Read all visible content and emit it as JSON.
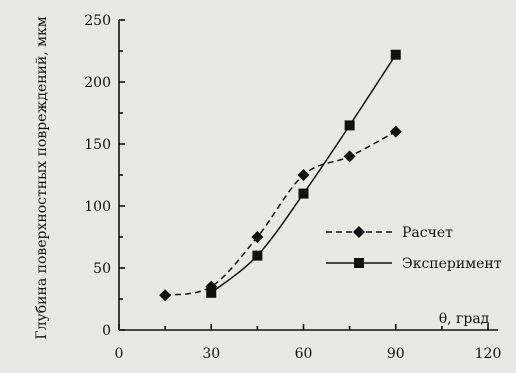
{
  "chart_data": {
    "type": "line",
    "ylabel": "Глубина поверхностных повреждений, мкм",
    "xlabel": "θ, град",
    "xlim": [
      0,
      120
    ],
    "ylim": [
      0,
      250
    ],
    "xticks": [
      0,
      30,
      60,
      90,
      120
    ],
    "yticks": [
      0,
      50,
      100,
      150,
      200,
      250
    ],
    "legend_position": "right",
    "series": [
      {
        "name": "Расчет",
        "line": "dashed",
        "marker": "diamond",
        "points": [
          [
            15,
            28
          ],
          [
            30,
            35
          ],
          [
            45,
            75
          ],
          [
            60,
            125
          ],
          [
            75,
            140
          ],
          [
            90,
            160
          ]
        ]
      },
      {
        "name": "Эксперимент",
        "line": "solid",
        "marker": "square",
        "points": [
          [
            30,
            30
          ],
          [
            45,
            60
          ],
          [
            60,
            110
          ],
          [
            75,
            165
          ],
          [
            90,
            222
          ]
        ]
      }
    ]
  }
}
